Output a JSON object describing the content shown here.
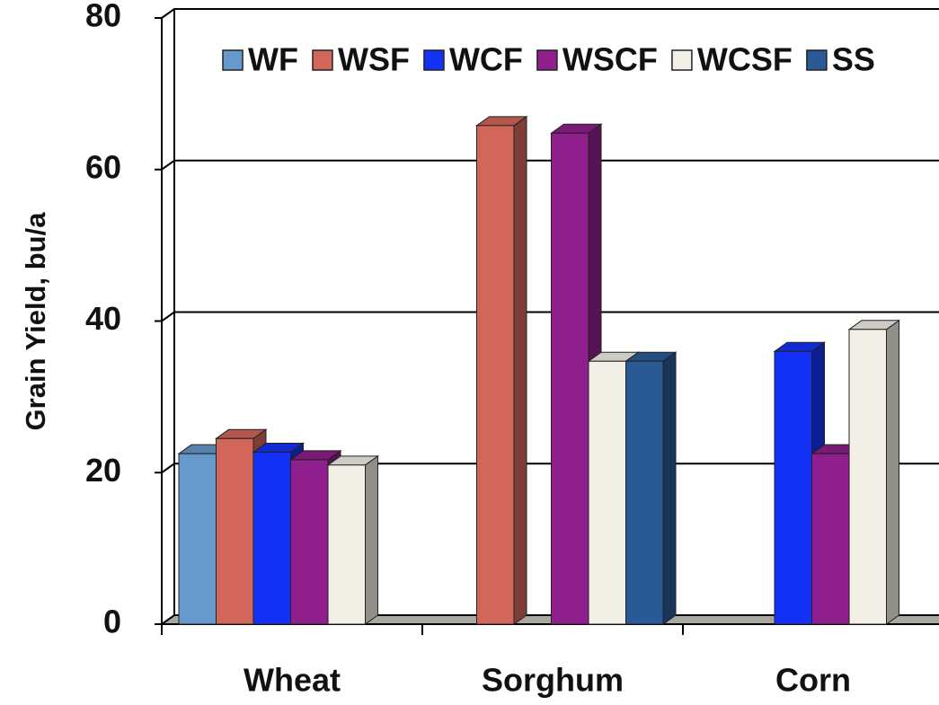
{
  "chart_data": {
    "type": "bar3d",
    "y_label": "Grain Yield, bu/a",
    "categories": [
      "Wheat",
      "Sorghum",
      "Corn"
    ],
    "series": [
      {
        "name": "WF",
        "color": "#6699cc",
        "values": [
          22.5,
          null,
          null
        ]
      },
      {
        "name": "WSF",
        "color": "#d2665a",
        "values": [
          24.5,
          65.8,
          null
        ]
      },
      {
        "name": "WCF",
        "color": "#1432f5",
        "values": [
          22.7,
          null,
          36
        ]
      },
      {
        "name": "WSCF",
        "color": "#8e1f8c",
        "values": [
          21.7,
          64.8,
          22.5
        ]
      },
      {
        "name": "WCSF",
        "color": "#f2efe6",
        "values": [
          21,
          34.7,
          38.9
        ]
      },
      {
        "name": "SS",
        "color": "#2a5a96",
        "values": [
          null,
          34.7,
          null
        ]
      }
    ],
    "ylim": [
      0,
      80
    ],
    "yticks": [
      0,
      20,
      40,
      60,
      80
    ],
    "grid": true
  }
}
